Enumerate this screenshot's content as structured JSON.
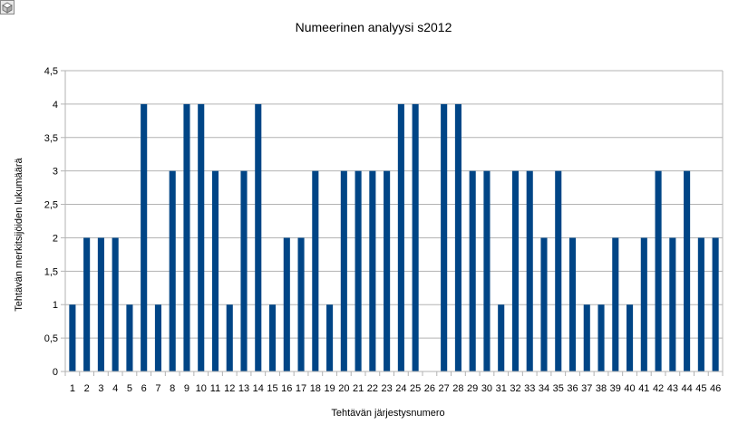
{
  "chart_data": {
    "type": "bar",
    "title": "Numeerinen analyysi s2012",
    "xlabel": "Tehtävän järjestysnumero",
    "ylabel": "Tehtävän merkitsijöiden lukumäärä",
    "categories": [
      "1",
      "2",
      "3",
      "4",
      "5",
      "6",
      "7",
      "8",
      "9",
      "10",
      "11",
      "12",
      "13",
      "14",
      "15",
      "16",
      "17",
      "18",
      "19",
      "20",
      "21",
      "22",
      "23",
      "24",
      "25",
      "26",
      "27",
      "28",
      "29",
      "30",
      "31",
      "32",
      "33",
      "34",
      "35",
      "36",
      "37",
      "38",
      "39",
      "40",
      "41",
      "42",
      "43",
      "44",
      "45",
      "46"
    ],
    "values": [
      1,
      2,
      2,
      2,
      1,
      4,
      1,
      3,
      4,
      4,
      3,
      1,
      3,
      4,
      1,
      2,
      2,
      3,
      1,
      3,
      3,
      3,
      3,
      4,
      4,
      0,
      4,
      4,
      3,
      3,
      1,
      3,
      3,
      2,
      3,
      2,
      1,
      1,
      2,
      1,
      2,
      3,
      2,
      3,
      2,
      2
    ],
    "yticks": [
      "0",
      "0,5",
      "1",
      "1,5",
      "2",
      "2,5",
      "3",
      "3,5",
      "4",
      "4,5"
    ],
    "ylim": [
      0,
      4.5
    ],
    "grid": true,
    "legend": "none",
    "bar_color": "#004586"
  },
  "corner_icon": "window-icon"
}
